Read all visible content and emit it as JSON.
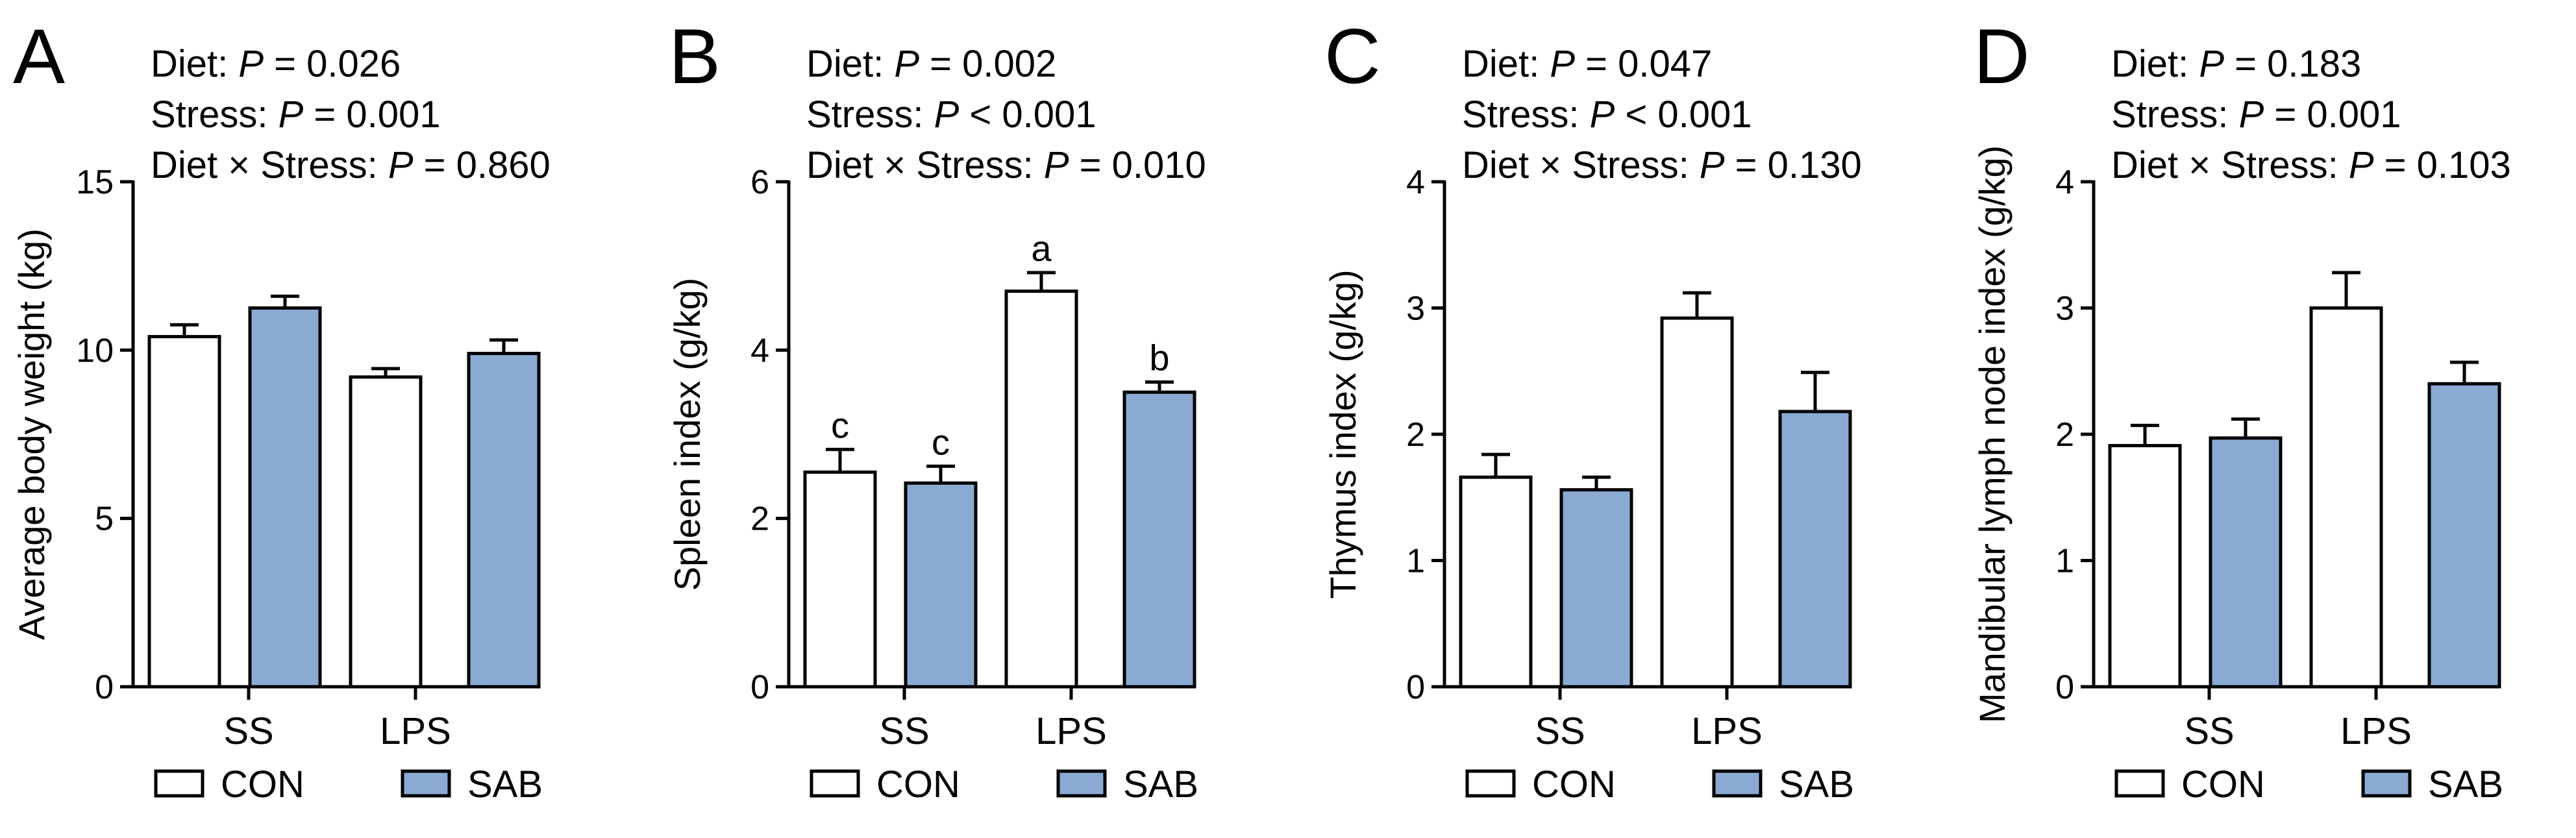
{
  "colors": {
    "CON": "#ffffff",
    "SAB": "#8aaad3",
    "axis": "#000000"
  },
  "chart_data": [
    {
      "panel": "A",
      "type": "bar",
      "categories": [
        "SS",
        "LPS"
      ],
      "series": [
        {
          "name": "CON",
          "values": [
            10.4,
            9.2
          ],
          "errors": [
            0.35,
            0.25
          ]
        },
        {
          "name": "SAB",
          "values": [
            11.25,
            9.9
          ],
          "errors": [
            0.35,
            0.4
          ]
        }
      ],
      "ylabel": "Average body weight (kg)",
      "ylim": [
        0,
        15
      ],
      "yticks": [
        0,
        5,
        10,
        15
      ],
      "stats": [
        {
          "label": "Diet: ",
          "p": "P",
          "rest": " = 0.026"
        },
        {
          "label": "Stress: ",
          "p": "P",
          "rest": " = 0.001"
        },
        {
          "label": "Diet × Stress: ",
          "p": "P",
          "rest": " = 0.860"
        }
      ],
      "letters": [
        [
          "",
          ""
        ],
        [
          "",
          ""
        ]
      ],
      "legend": [
        "CON",
        "SAB"
      ]
    },
    {
      "panel": "B",
      "type": "bar",
      "categories": [
        "SS",
        "LPS"
      ],
      "series": [
        {
          "name": "CON",
          "values": [
            2.55,
            4.7
          ],
          "errors": [
            0.27,
            0.22
          ]
        },
        {
          "name": "SAB",
          "values": [
            2.42,
            3.5
          ],
          "errors": [
            0.2,
            0.12
          ]
        }
      ],
      "ylabel": "Spleen index (g/kg)",
      "ylim": [
        0,
        6
      ],
      "yticks": [
        0,
        2,
        4,
        6
      ],
      "stats": [
        {
          "label": "Diet: ",
          "p": "P",
          "rest": " = 0.002"
        },
        {
          "label": "Stress: ",
          "p": "P",
          "rest": " < 0.001"
        },
        {
          "label": "Diet × Stress: ",
          "p": "P",
          "rest": " = 0.010"
        }
      ],
      "letters": [
        [
          "c",
          "a"
        ],
        [
          "c",
          "b"
        ]
      ],
      "legend": [
        "CON",
        "SAB"
      ]
    },
    {
      "panel": "C",
      "type": "bar",
      "categories": [
        "SS",
        "LPS"
      ],
      "series": [
        {
          "name": "CON",
          "values": [
            1.66,
            2.92
          ],
          "errors": [
            0.18,
            0.2
          ]
        },
        {
          "name": "SAB",
          "values": [
            1.56,
            2.18
          ],
          "errors": [
            0.1,
            0.31
          ]
        }
      ],
      "ylabel": "Thymus index (g/kg)",
      "ylim": [
        0,
        4
      ],
      "yticks": [
        0,
        1,
        2,
        3,
        4
      ],
      "stats": [
        {
          "label": "Diet: ",
          "p": "P",
          "rest": " = 0.047"
        },
        {
          "label": "Stress: ",
          "p": "P",
          "rest": " < 0.001"
        },
        {
          "label": "Diet × Stress: ",
          "p": "P",
          "rest": " = 0.130"
        }
      ],
      "letters": [
        [
          "",
          ""
        ],
        [
          "",
          ""
        ]
      ],
      "legend": [
        "CON",
        "SAB"
      ]
    },
    {
      "panel": "D",
      "type": "bar",
      "categories": [
        "SS",
        "LPS"
      ],
      "series": [
        {
          "name": "CON",
          "values": [
            1.91,
            3.0
          ],
          "errors": [
            0.16,
            0.28
          ]
        },
        {
          "name": "SAB",
          "values": [
            1.97,
            2.4
          ],
          "errors": [
            0.15,
            0.17
          ]
        }
      ],
      "ylabel": "Mandibular lymph node index (g/kg)",
      "ylim": [
        0,
        4
      ],
      "yticks": [
        0,
        1,
        2,
        3,
        4
      ],
      "stats": [
        {
          "label": "Diet: ",
          "p": "P",
          "rest": " = 0.183"
        },
        {
          "label": "Stress: ",
          "p": "P",
          "rest": " = 0.001"
        },
        {
          "label": "Diet × Stress: ",
          "p": "P",
          "rest": " = 0.103"
        }
      ],
      "letters": [
        [
          "",
          ""
        ],
        [
          "",
          ""
        ]
      ],
      "legend": [
        "CON",
        "SAB"
      ]
    }
  ]
}
